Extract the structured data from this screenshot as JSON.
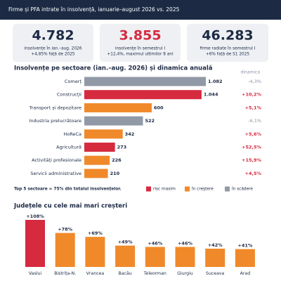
{
  "header": {
    "title": "Firme și PFA intrate în insolvență, ianuarie–august 2026 vs. 2025"
  },
  "kpis": [
    {
      "value": "4.782",
      "line1": "insolvențe în ian.–aug. 2026",
      "line2": "+4,85% față de 2025",
      "color": "#1c2a44"
    },
    {
      "value": "3.855",
      "line1": "insolvențe în semestrul I",
      "line2": "+12,4%, maximul ultimilor 8 ani",
      "color": "#d62a3f"
    },
    {
      "value": "46.283",
      "line1": "firme radiate în semestrul I",
      "line2": "+6% față de S1 2025",
      "color": "#1c2a44"
    }
  ],
  "chart_data": [
    {
      "type": "hbar",
      "title": "Insolvențe pe sectoare (ian.–aug. 2026) și dinamica anuală",
      "dynamics_header": "dinamica",
      "categories": [
        "Comerț",
        "Construcții",
        "Transport și depozitare",
        "Industria prelucrătoare",
        "HoReCa",
        "Agricultură",
        "Activități profesionale",
        "Servicii administrative"
      ],
      "values": [
        1082,
        1044,
        600,
        522,
        342,
        273,
        226,
        210
      ],
      "value_labels": [
        "1.082",
        "1.044",
        "600",
        "522",
        "342",
        "273",
        "226",
        "210"
      ],
      "dynamics": [
        "-4,3%",
        "+10,2%",
        "+5,1%",
        "-6,1%",
        "+5,6%",
        "+52,5%",
        "+15,9%",
        "+4,5%"
      ],
      "status": [
        "în scădere",
        "risc maxim",
        "în creștere",
        "în scădere",
        "în creștere",
        "risc maxim",
        "în creștere",
        "în creștere"
      ],
      "legend": [
        {
          "name": "risc maxim",
          "color": "#d62a3f"
        },
        {
          "name": "în creștere",
          "color": "#f0892a"
        },
        {
          "name": "în scădere",
          "color": "#9299a6"
        }
      ],
      "note": "Top 5 sectoare ≈ 75% din totalul insolvențelor."
    },
    {
      "type": "bar",
      "title": "Județele cu cele mai mari creșteri",
      "categories": [
        "Vaslui",
        "Bistrița-N.",
        "Vrancea",
        "Bacău",
        "Teleorman",
        "Giurgiu",
        "Suceava",
        "Arad"
      ],
      "values": [
        108,
        78,
        69,
        49,
        46,
        46,
        42,
        41
      ],
      "value_labels": [
        "+108%",
        "+78%",
        "+69%",
        "+49%",
        "+46%",
        "+46%",
        "+42%",
        "+41%"
      ],
      "colors": [
        "#d62a3f",
        "#f0892a",
        "#f0892a",
        "#f0892a",
        "#f0892a",
        "#f0892a",
        "#f0892a",
        "#f0892a"
      ]
    }
  ]
}
